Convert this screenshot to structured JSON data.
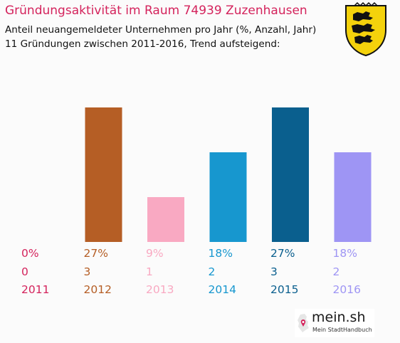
{
  "header": {
    "title": "Gründungsaktivität im Raum 74939 Zuzenhausen",
    "subtitle_line1": "Anteil neuangemeldeter Unternehmen pro Jahr (%, Anzahl, Jahr)",
    "subtitle_line2": "11 Gründungen zwischen 2011-2016, Trend aufsteigend:"
  },
  "emblem": {
    "icon": "baden-wuerttemberg-coat-of-arms-icon"
  },
  "brand": {
    "name": "mein.sh",
    "tagline": "Mein StadtHandbuch",
    "icon": "germany-map-pin-icon"
  },
  "chart_data": {
    "type": "bar",
    "categories": [
      "2011",
      "2012",
      "2013",
      "2014",
      "2015",
      "2016"
    ],
    "values": [
      0,
      3,
      1,
      2,
      3,
      2
    ],
    "percent_labels": [
      "0%",
      "27%",
      "9%",
      "18%",
      "27%",
      "18%"
    ],
    "count_labels": [
      "0",
      "3",
      "1",
      "2",
      "3",
      "2"
    ],
    "colors": [
      "#d4235c",
      "#b55e25",
      "#f9a9c2",
      "#1797cf",
      "#0a5f8e",
      "#9e95f4"
    ],
    "ylim": [
      0,
      3
    ],
    "grid": false,
    "legend": "none"
  }
}
